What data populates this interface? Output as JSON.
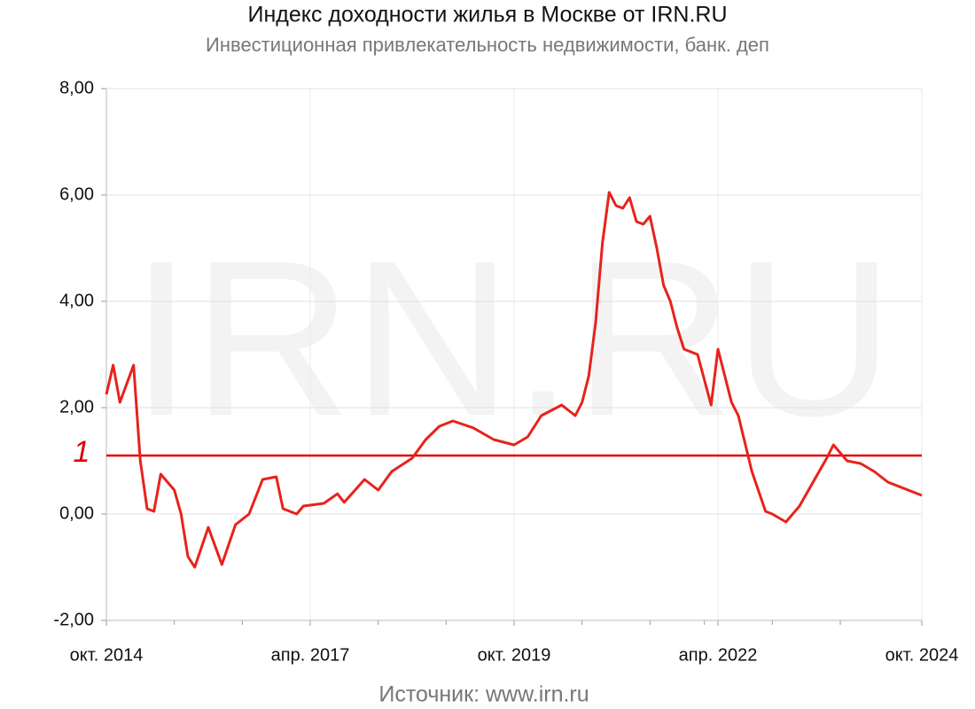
{
  "chart_data": {
    "type": "line",
    "title": "Индекс доходности жилья в Москве от IRN.RU",
    "subtitle": "Инвестиционная привлекательность недвижимости, банк. деп",
    "watermark": "IRN.RU",
    "source": "Источник: www.irn.ru",
    "x": [
      "2014-10",
      "2014-11",
      "2014-12",
      "2015-02",
      "2015-03",
      "2015-04",
      "2015-05",
      "2015-06",
      "2015-08",
      "2015-09",
      "2015-10",
      "2015-11",
      "2016-01",
      "2016-03",
      "2016-05",
      "2016-07",
      "2016-09",
      "2016-11",
      "2016-12",
      "2017-02",
      "2017-03",
      "2017-06",
      "2017-08",
      "2017-09",
      "2017-12",
      "2018-02",
      "2018-04",
      "2018-07",
      "2018-09",
      "2018-11",
      "2019-01",
      "2019-04",
      "2019-07",
      "2019-10",
      "2019-12",
      "2020-02",
      "2020-05",
      "2020-07",
      "2020-08",
      "2020-09",
      "2020-10",
      "2020-11",
      "2020-12",
      "2021-01",
      "2021-02",
      "2021-03",
      "2021-04",
      "2021-05",
      "2021-06",
      "2021-07",
      "2021-08",
      "2021-09",
      "2021-10",
      "2021-11",
      "2022-01",
      "2022-03",
      "2022-04",
      "2022-05",
      "2022-06",
      "2022-07",
      "2022-09",
      "2022-11",
      "2022-12",
      "2023-02",
      "2023-04",
      "2023-06",
      "2023-08",
      "2023-09",
      "2023-11",
      "2024-01",
      "2024-03",
      "2024-05",
      "2024-08",
      "2024-10"
    ],
    "values": [
      2.25,
      2.8,
      2.1,
      2.8,
      1.0,
      0.1,
      0.05,
      0.75,
      0.45,
      0.0,
      -0.8,
      -1.0,
      -0.25,
      -0.95,
      -0.2,
      0.0,
      0.65,
      0.7,
      0.1,
      0.0,
      0.15,
      0.2,
      0.38,
      0.22,
      0.65,
      0.45,
      0.8,
      1.05,
      1.4,
      1.65,
      1.75,
      1.62,
      1.4,
      1.3,
      1.45,
      1.85,
      2.05,
      1.85,
      2.1,
      2.6,
      3.6,
      5.1,
      6.05,
      5.8,
      5.75,
      5.95,
      5.5,
      5.45,
      5.6,
      5.0,
      4.3,
      4.0,
      3.5,
      3.1,
      3.0,
      2.05,
      3.1,
      2.6,
      2.1,
      1.85,
      0.8,
      0.05,
      0.0,
      -0.15,
      0.15,
      0.6,
      1.05,
      1.3,
      1.0,
      0.95,
      0.8,
      0.6,
      0.45,
      0.35
    ],
    "color": "#e8221c",
    "xlim": [
      "2014-10",
      "2024-10"
    ],
    "xticks": [
      {
        "value": "2014-10",
        "label": "окт. 2014"
      },
      {
        "value": "2017-04",
        "label": "апр. 2017"
      },
      {
        "value": "2019-10",
        "label": "окт. 2019"
      },
      {
        "value": "2022-04",
        "label": "апр. 2022"
      },
      {
        "value": "2024-10",
        "label": "окт. 2024"
      }
    ],
    "xminorticks": [
      "2015-08",
      "2016-06",
      "2018-02",
      "2018-12",
      "2020-08",
      "2021-06",
      "2022-02",
      "2022-12",
      "2023-10"
    ],
    "ylim": [
      -2,
      8
    ],
    "yticks": [
      {
        "value": -2,
        "label": "-2,00"
      },
      {
        "value": 0,
        "label": "0,00"
      },
      {
        "value": 2,
        "label": "2,00"
      },
      {
        "value": 4,
        "label": "4,00"
      },
      {
        "value": 6,
        "label": "6,00"
      },
      {
        "value": 8,
        "label": "8,00"
      }
    ],
    "grid": true,
    "reference_line": {
      "value": 1.1,
      "label": "1",
      "color": "#e00000"
    }
  }
}
